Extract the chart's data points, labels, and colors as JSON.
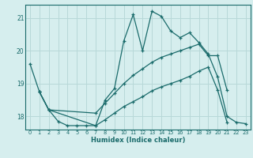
{
  "title": "",
  "xlabel": "Humidex (Indice chaleur)",
  "background_color": "#d6eeee",
  "grid_color": "#b8d8d8",
  "line_color": "#1a6b6b",
  "xlim": [
    -0.5,
    23.5
  ],
  "ylim": [
    17.6,
    21.4
  ],
  "yticks": [
    18,
    19,
    20,
    21
  ],
  "ytick_labels": [
    "18",
    "19",
    "20",
    "21"
  ],
  "xticks": [
    0,
    1,
    2,
    3,
    4,
    5,
    6,
    7,
    8,
    9,
    10,
    11,
    12,
    13,
    14,
    15,
    16,
    17,
    18,
    19,
    20,
    21,
    22,
    23
  ],
  "series1_x": [
    0,
    1,
    2,
    3,
    4,
    5,
    6,
    7,
    8,
    9,
    10,
    11,
    12,
    13,
    14,
    15,
    16,
    17,
    18,
    19,
    20,
    21,
    22,
    23
  ],
  "series1_y": [
    19.6,
    18.75,
    18.2,
    17.85,
    17.72,
    17.72,
    17.72,
    17.72,
    18.5,
    18.85,
    20.3,
    21.1,
    20.0,
    21.2,
    21.05,
    20.6,
    20.4,
    20.55,
    20.25,
    19.9,
    19.2,
    18.0,
    17.82,
    17.78
  ],
  "series2_x": [
    1,
    2,
    7,
    8,
    9,
    10,
    11,
    12,
    13,
    14,
    15,
    16,
    17,
    18,
    19,
    20,
    21
  ],
  "series2_y": [
    18.75,
    18.2,
    18.1,
    18.4,
    18.7,
    19.0,
    19.25,
    19.45,
    19.65,
    19.8,
    19.9,
    20.0,
    20.1,
    20.2,
    19.85,
    19.85,
    18.8
  ],
  "series3_x": [
    1,
    2,
    7,
    8,
    9,
    10,
    11,
    12,
    13,
    14,
    15,
    16,
    17,
    18,
    19,
    20,
    21
  ],
  "series3_y": [
    18.75,
    18.2,
    17.72,
    17.9,
    18.1,
    18.3,
    18.45,
    18.6,
    18.78,
    18.9,
    19.0,
    19.1,
    19.22,
    19.38,
    19.5,
    18.8,
    17.82
  ]
}
